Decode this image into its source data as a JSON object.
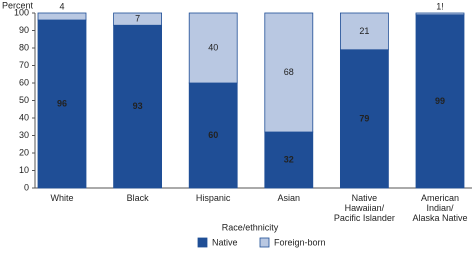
{
  "chart_data": {
    "type": "stacked_bar",
    "y_label": "Percent",
    "x_label": "Race/ethnicity",
    "categories": [
      "White",
      "Black",
      "Hispanic",
      "Asian",
      "Native\nHawaiian/\nPacific Islander",
      "American\nIndian/\nAlaska Native"
    ],
    "series": [
      {
        "name": "Native",
        "color": "#1f4e96",
        "values": [
          96,
          93,
          60,
          32,
          79,
          99
        ]
      },
      {
        "name": "Foreign-born",
        "color": "#b9c8e2",
        "values": [
          4,
          7,
          40,
          68,
          21,
          1
        ],
        "value_labels": [
          "4",
          "7",
          "40",
          "68",
          "21",
          "1!"
        ]
      }
    ],
    "ylim": [
      0,
      100
    ],
    "yticks": [
      0,
      10,
      20,
      30,
      40,
      50,
      60,
      70,
      80,
      90,
      100
    ],
    "grid": false
  }
}
